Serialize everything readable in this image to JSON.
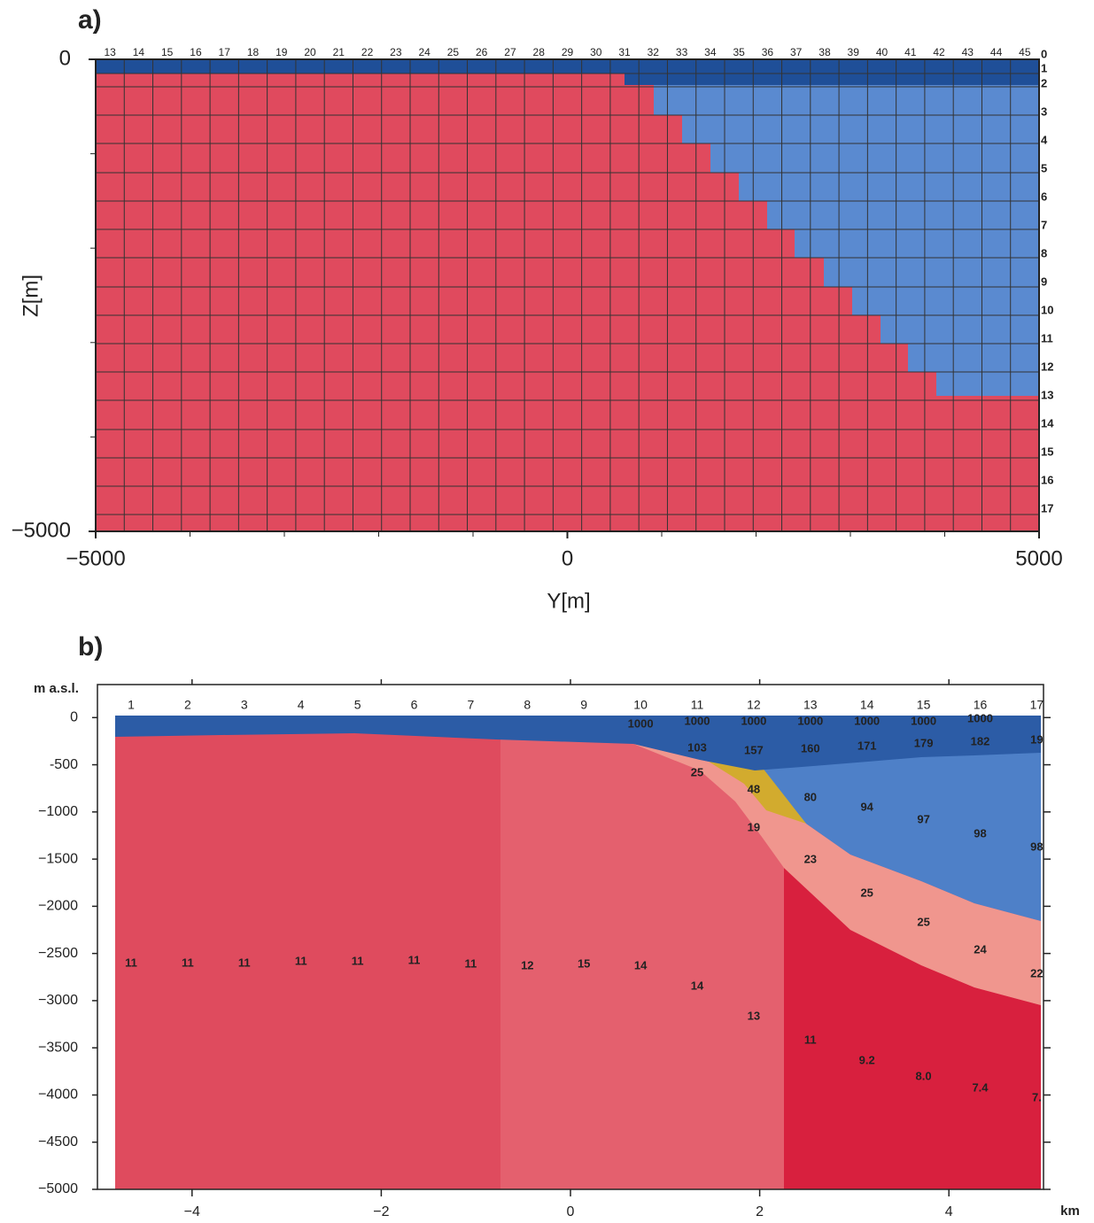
{
  "chart_data": [
    {
      "type": "grid",
      "panel_label": "a)",
      "xlabel": "Y[m]",
      "ylabel": "Z[m]",
      "xlim": [
        -5000,
        5000
      ],
      "ylim": [
        -5000,
        0
      ],
      "xticks": [
        {
          "value": -5000,
          "label": "−5000"
        },
        0,
        5000
      ],
      "yticks": [
        0,
        {
          "value": -5000,
          "label": "−5000"
        }
      ],
      "xminor": [
        -4000,
        -3000,
        -2000,
        -1000,
        1000,
        2000,
        3000,
        4000
      ],
      "yminor": [
        -1000,
        -2000,
        -3000,
        -4000
      ],
      "column_labels": [
        13,
        14,
        15,
        16,
        17,
        18,
        19,
        20,
        21,
        22,
        23,
        24,
        25,
        26,
        27,
        28,
        29,
        30,
        31,
        32,
        33,
        34,
        35,
        36,
        37,
        38,
        39,
        40,
        41,
        42,
        43,
        44,
        45
      ],
      "row_labels": [
        0,
        1,
        2,
        3,
        4,
        5,
        6,
        7,
        8,
        9,
        10,
        11,
        12,
        13,
        14,
        15,
        16,
        17
      ]
    },
    {
      "type": "section",
      "panel_label": "b)",
      "ylabel": "m a.s.l.",
      "xlabel": "km",
      "xlim": [
        -5,
        5
      ],
      "ylim": [
        -5000,
        350
      ],
      "xticks": [
        {
          "value": -4,
          "label": "−4"
        },
        {
          "value": -2,
          "label": "−2"
        },
        0,
        2,
        4
      ],
      "yticks": [
        0,
        {
          "value": -500,
          "label": "-500"
        },
        {
          "value": -1000,
          "label": "−1000"
        },
        {
          "value": -1500,
          "label": "−1500"
        },
        {
          "value": -2000,
          "label": "−2000"
        },
        {
          "value": -2500,
          "label": "−2500"
        },
        {
          "value": -3000,
          "label": "−3000"
        },
        {
          "value": -3500,
          "label": "−3500"
        },
        {
          "value": -4000,
          "label": "−4000"
        },
        {
          "value": -4500,
          "label": "−4500"
        },
        {
          "value": -5000,
          "label": "−5000"
        }
      ],
      "station_labels": [
        1,
        2,
        3,
        4,
        5,
        6,
        7,
        8,
        9,
        10,
        11,
        12,
        13,
        14,
        15,
        16,
        17
      ],
      "annotations": [
        "1000",
        "1000",
        "1000",
        "1000",
        "1000",
        "1000",
        "1000",
        "103",
        "157",
        "160",
        "171",
        "179",
        "182",
        "19",
        "25",
        "48",
        "80",
        "94",
        "97",
        "98",
        "98",
        "19",
        "23",
        "25",
        "25",
        "24",
        "22",
        "11",
        "11",
        "11",
        "11",
        "11",
        "11",
        "11",
        "12",
        "15",
        "14",
        "14",
        "13",
        "11",
        "9.2",
        "8.0",
        "7.4",
        "7."
      ]
    }
  ]
}
